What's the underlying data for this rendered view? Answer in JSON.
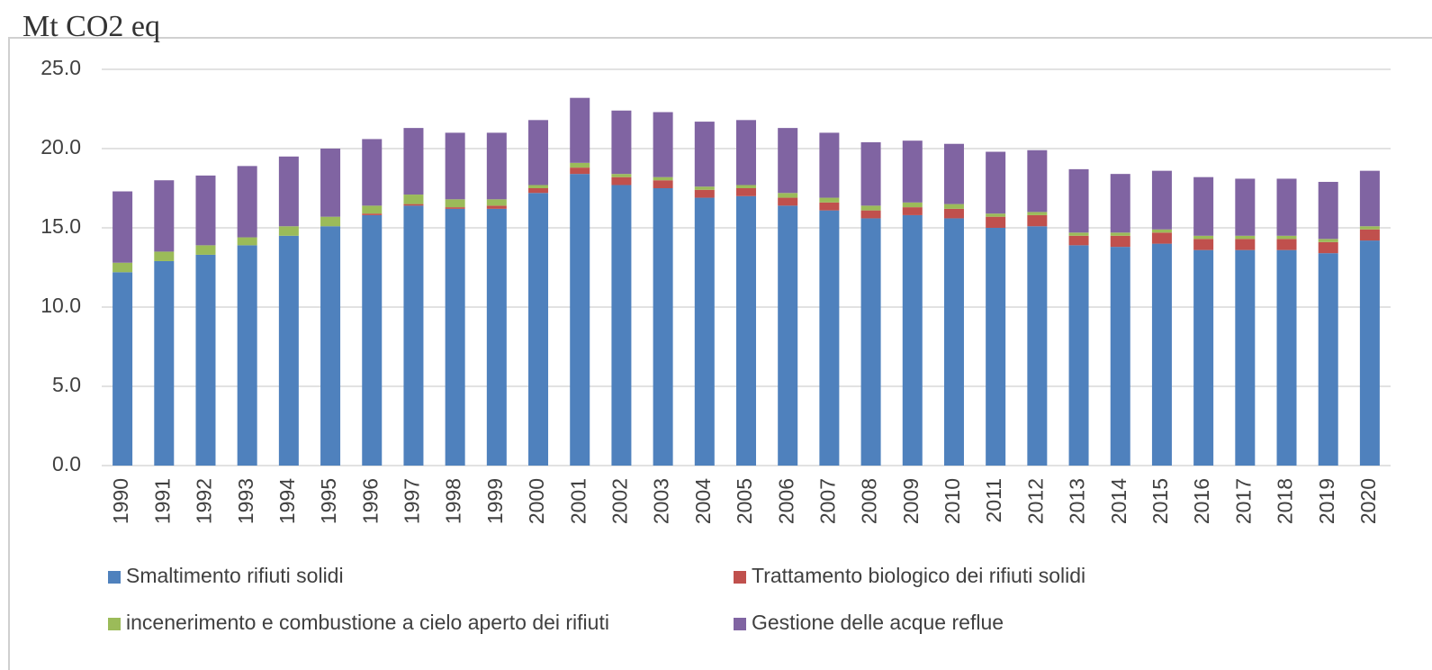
{
  "chart_data": {
    "type": "stacked_bar",
    "y_label": "Mt CO2 eq",
    "categories": [
      "1990",
      "1991",
      "1992",
      "1993",
      "1994",
      "1995",
      "1996",
      "1997",
      "1998",
      "1999",
      "2000",
      "2001",
      "2002",
      "2003",
      "2004",
      "2005",
      "2006",
      "2007",
      "2008",
      "2009",
      "2010",
      "2011",
      "2012",
      "2013",
      "2014",
      "2015",
      "2016",
      "2017",
      "2018",
      "2019",
      "2020"
    ],
    "series": [
      {
        "name": "Smaltimento rifiuti solidi",
        "color": "#4f81bd",
        "values": [
          12.2,
          12.9,
          13.3,
          13.9,
          14.5,
          15.1,
          15.8,
          16.4,
          16.2,
          16.2,
          17.2,
          18.4,
          17.7,
          17.5,
          16.9,
          17.0,
          16.4,
          16.1,
          15.6,
          15.8,
          15.6,
          15.0,
          15.1,
          13.9,
          13.8,
          14.0,
          13.6,
          13.6,
          13.6,
          13.4,
          14.2
        ]
      },
      {
        "name": "Trattamento biologico dei rifiuti solidi",
        "color": "#c0504d",
        "values": [
          0,
          0,
          0,
          0,
          0,
          0,
          0.1,
          0.1,
          0.1,
          0.2,
          0.3,
          0.4,
          0.5,
          0.5,
          0.5,
          0.5,
          0.5,
          0.5,
          0.5,
          0.5,
          0.6,
          0.7,
          0.7,
          0.6,
          0.7,
          0.7,
          0.7,
          0.7,
          0.7,
          0.7,
          0.7
        ]
      },
      {
        "name": "incenerimento e combustione a cielo aperto dei rifiuti",
        "color": "#9bbb59",
        "values": [
          0.6,
          0.6,
          0.6,
          0.5,
          0.6,
          0.6,
          0.5,
          0.6,
          0.5,
          0.4,
          0.2,
          0.3,
          0.2,
          0.2,
          0.2,
          0.2,
          0.3,
          0.3,
          0.3,
          0.3,
          0.3,
          0.2,
          0.2,
          0.2,
          0.2,
          0.2,
          0.2,
          0.2,
          0.2,
          0.2,
          0.2
        ]
      },
      {
        "name": "Gestione delle acque reflue",
        "color": "#8064a2",
        "values": [
          4.5,
          4.5,
          4.4,
          4.5,
          4.4,
          4.3,
          4.2,
          4.2,
          4.2,
          4.2,
          4.1,
          4.1,
          4.0,
          4.1,
          4.1,
          4.1,
          4.1,
          4.1,
          4.0,
          3.9,
          3.8,
          3.9,
          3.9,
          4.0,
          3.7,
          3.7,
          3.7,
          3.6,
          3.6,
          3.6,
          3.5
        ]
      }
    ],
    "ylim": [
      0,
      25
    ],
    "yticks": [
      {
        "value": 0,
        "label": "0.0"
      },
      {
        "value": 5,
        "label": "5.0"
      },
      {
        "value": 10,
        "label": "10.0"
      },
      {
        "value": 15,
        "label": "15.0"
      },
      {
        "value": 20,
        "label": "20.0"
      },
      {
        "value": 25,
        "label": "25.0"
      }
    ],
    "grid": true
  }
}
